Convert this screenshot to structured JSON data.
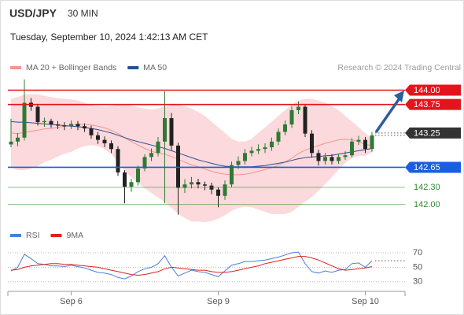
{
  "chart_data": {
    "type": "candlestick",
    "title": "USD/JPY",
    "interval": "30 MIN",
    "subtitle": "Tuesday, September 10, 2024 1:42:13 AM CET",
    "credit": "Research © 2024 Trading Central",
    "categories": [
      null,
      null,
      null,
      null,
      null,
      null,
      null,
      null,
      null,
      "Sep 6",
      null,
      null,
      null,
      null,
      null,
      null,
      null,
      null,
      null,
      null,
      null,
      null,
      null,
      null,
      null,
      null,
      null,
      null,
      null,
      null,
      null,
      "Sep 9",
      null,
      null,
      null,
      null,
      null,
      null,
      null,
      null,
      null,
      null,
      null,
      null,
      null,
      null,
      null,
      null,
      null,
      null,
      null,
      null,
      null,
      "Sep 10",
      null
    ],
    "open": [
      143.05,
      143.1,
      143.17,
      143.78,
      143.71,
      143.44,
      143.46,
      143.4,
      143.38,
      143.37,
      143.41,
      143.37,
      143.33,
      143.21,
      143.13,
      143.07,
      142.97,
      142.56,
      142.31,
      142.39,
      142.63,
      142.83,
      142.9,
      143.1,
      143.51,
      143.03,
      142.29,
      142.35,
      142.39,
      142.35,
      142.33,
      142.26,
      142.15,
      142.35,
      142.69,
      142.76,
      142.9,
      142.94,
      142.97,
      143.0,
      143.1,
      143.27,
      143.4,
      143.65,
      143.71,
      143.24,
      142.9,
      142.76,
      142.83,
      142.76,
      142.83,
      142.86,
      143.1,
      143.13,
      142.97
    ],
    "high": [
      143.5,
      143.25,
      144.19,
      143.86,
      143.76,
      143.52,
      143.5,
      143.46,
      143.44,
      143.47,
      143.46,
      143.42,
      143.38,
      143.27,
      143.19,
      143.12,
      143.02,
      142.6,
      142.45,
      142.68,
      142.88,
      142.98,
      143.18,
      143.98,
      143.6,
      143.08,
      142.44,
      142.48,
      142.45,
      142.4,
      142.38,
      142.3,
      142.42,
      142.75,
      142.84,
      142.97,
      143.01,
      143.05,
      143.07,
      143.17,
      143.33,
      143.47,
      143.72,
      143.8,
      143.76,
      143.3,
      142.96,
      142.9,
      142.88,
      142.88,
      142.93,
      143.16,
      143.2,
      143.18,
      143.27
    ],
    "low": [
      143.0,
      143.02,
      143.12,
      143.64,
      143.38,
      143.36,
      143.34,
      143.32,
      143.3,
      143.32,
      143.3,
      143.27,
      143.15,
      143.06,
      143.0,
      142.9,
      142.5,
      142.02,
      142.22,
      142.33,
      142.58,
      142.76,
      142.84,
      142.02,
      142.95,
      141.82,
      142.2,
      142.28,
      142.28,
      142.25,
      142.18,
      141.95,
      142.08,
      142.3,
      142.62,
      142.7,
      142.84,
      142.88,
      142.9,
      142.94,
      143.04,
      143.21,
      143.34,
      143.58,
      143.18,
      142.82,
      142.68,
      142.7,
      142.7,
      142.71,
      142.78,
      142.82,
      143.04,
      142.9,
      142.92
    ],
    "close": [
      143.1,
      143.17,
      143.78,
      143.71,
      143.44,
      143.46,
      143.4,
      143.38,
      143.37,
      143.41,
      143.37,
      143.33,
      143.21,
      143.13,
      143.07,
      142.97,
      142.56,
      142.31,
      142.39,
      142.63,
      142.83,
      142.9,
      143.1,
      143.51,
      143.03,
      142.29,
      142.35,
      142.39,
      142.35,
      142.33,
      142.26,
      142.15,
      142.35,
      142.69,
      142.76,
      142.9,
      142.94,
      142.97,
      143.0,
      143.1,
      143.27,
      143.4,
      143.65,
      143.71,
      143.24,
      142.9,
      142.76,
      142.83,
      142.76,
      142.83,
      142.86,
      143.1,
      143.13,
      142.97,
      143.21
    ],
    "up_color": "#2f7a34",
    "down_color": "#222222",
    "ylim": [
      141.65,
      144.2
    ],
    "series": [
      {
        "name": "MA 20 + Bollinger Bands",
        "color": "#f4958c",
        "band_color": "#fcd9dc",
        "values": [
          143.25,
          143.24,
          143.26,
          143.28,
          143.3,
          143.32,
          143.33,
          143.35,
          143.37,
          143.38,
          143.4,
          143.4,
          143.39,
          143.37,
          143.34,
          143.3,
          143.24,
          143.17,
          143.1,
          143.04,
          142.98,
          142.93,
          142.9,
          142.88,
          142.84,
          142.79,
          142.74,
          142.69,
          142.66,
          142.62,
          142.58,
          142.55,
          142.53,
          142.52,
          142.52,
          142.53,
          142.55,
          142.58,
          142.61,
          142.64,
          142.69,
          142.74,
          142.81,
          142.89,
          142.95,
          142.99,
          143.03,
          143.07,
          143.1,
          143.13,
          143.14,
          143.13,
          143.1,
          143.05,
          143.03
        ],
        "upper": [
          143.85,
          143.88,
          143.92,
          143.93,
          143.93,
          143.9,
          143.88,
          143.86,
          143.85,
          143.84,
          143.82,
          143.78,
          143.74,
          143.72,
          143.71,
          143.72,
          143.74,
          143.75,
          143.73,
          143.7,
          143.68,
          143.66,
          143.68,
          143.72,
          143.74,
          143.74,
          143.72,
          143.68,
          143.62,
          143.55,
          143.45,
          143.35,
          143.25,
          143.15,
          143.1,
          143.1,
          143.15,
          143.25,
          143.35,
          143.45,
          143.55,
          143.65,
          143.75,
          143.82,
          143.85,
          143.85,
          143.82,
          143.78,
          143.72,
          143.65,
          143.55,
          143.45,
          143.35,
          143.25,
          143.15
        ],
        "lower": [
          142.65,
          142.6,
          142.6,
          142.63,
          142.67,
          142.74,
          142.78,
          142.84,
          142.89,
          142.92,
          142.98,
          143.02,
          143.04,
          143.02,
          142.97,
          142.88,
          142.74,
          142.59,
          142.47,
          142.38,
          142.28,
          142.2,
          142.12,
          142.04,
          141.94,
          141.84,
          141.76,
          141.7,
          141.7,
          141.69,
          141.71,
          141.75,
          141.81,
          141.89,
          141.94,
          141.96,
          141.95,
          141.91,
          141.87,
          141.83,
          141.83,
          141.83,
          141.87,
          141.96,
          142.05,
          142.13,
          142.24,
          142.36,
          142.48,
          142.61,
          142.73,
          142.81,
          142.85,
          142.85,
          142.91
        ]
      },
      {
        "name": "MA 50",
        "color": "#2b4f8e",
        "values": [
          143.45,
          143.44,
          143.44,
          143.43,
          143.42,
          143.41,
          143.4,
          143.39,
          143.38,
          143.37,
          143.36,
          143.35,
          143.33,
          143.31,
          143.28,
          143.25,
          143.21,
          143.17,
          143.13,
          143.1,
          143.07,
          143.04,
          143.01,
          142.98,
          142.94,
          142.9,
          142.86,
          142.82,
          142.78,
          142.75,
          142.72,
          142.69,
          142.67,
          142.66,
          142.66,
          142.66,
          142.66,
          142.67,
          142.68,
          142.7,
          142.72,
          142.74,
          142.77,
          142.8,
          142.82,
          142.83,
          142.84,
          142.85,
          142.86,
          142.88,
          142.9,
          142.92,
          142.94,
          142.96,
          142.98
        ]
      }
    ],
    "levels": [
      {
        "value": 144.0,
        "label": "144.00",
        "color": "#e3141c",
        "line": "solid",
        "style": "box"
      },
      {
        "value": 143.75,
        "label": "143.75",
        "color": "#e3141c",
        "line": "solid",
        "style": "box"
      },
      {
        "value": 143.25,
        "label": "143.25",
        "color": "#333333",
        "line": "dotted",
        "style": "box"
      },
      {
        "value": 142.65,
        "label": "142.65",
        "color": "#1a5ee0",
        "line": "solid",
        "style": "box"
      },
      {
        "value": 142.3,
        "label": "142.30",
        "color": "#2e8b2e",
        "line": "thin",
        "style": "text"
      },
      {
        "value": 142.0,
        "label": "142.00",
        "color": "#2e8b2e",
        "line": "thin",
        "style": "text"
      }
    ],
    "rsi": {
      "ylim": [
        20,
        82
      ],
      "yticks": [
        70,
        50,
        30
      ],
      "series": [
        {
          "name": "RSI",
          "color": "#4a7fd8",
          "values": [
            45,
            50,
            68,
            62,
            55,
            54,
            52,
            52,
            51,
            53,
            51,
            49,
            46,
            43,
            42,
            40,
            36,
            34,
            38,
            44,
            48,
            50,
            55,
            66,
            50,
            38,
            42,
            46,
            44,
            43,
            40,
            37,
            45,
            53,
            55,
            58,
            58,
            59,
            60,
            62,
            64,
            67,
            70,
            71,
            55,
            44,
            42,
            45,
            43,
            46,
            47,
            55,
            56,
            50,
            59
          ]
        },
        {
          "name": "9MA",
          "color": "#e02020",
          "values": [
            46,
            47,
            50,
            52,
            53,
            54,
            55,
            55,
            54,
            54,
            53,
            52,
            51,
            50,
            48,
            46,
            44,
            42,
            40,
            39,
            40,
            42,
            44,
            48,
            50,
            49,
            48,
            47,
            46,
            46,
            44,
            43,
            43,
            44,
            46,
            48,
            50,
            52,
            55,
            57,
            59,
            61,
            63,
            65,
            65,
            63,
            60,
            56,
            52,
            48,
            46,
            47,
            48,
            49,
            51
          ]
        }
      ]
    }
  }
}
